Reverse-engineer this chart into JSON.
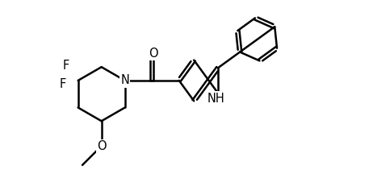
{
  "bg_color": "#ffffff",
  "line_color": "#000000",
  "line_width": 1.8,
  "font_size": 10.5,
  "fig_width": 4.62,
  "fig_height": 2.42,
  "dpi": 100,
  "xlim": [
    0,
    10
  ],
  "ylim": [
    0,
    5.5
  ]
}
